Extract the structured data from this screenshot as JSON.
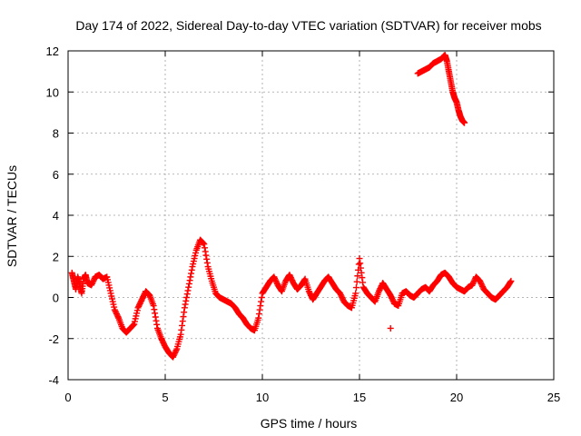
{
  "chart_data": {
    "type": "scatter",
    "title": "Day 174 of 2022, Sidereal Day-to-day VTEC variation (SDTVAR) for receiver mobs",
    "xlabel": "GPS time / hours",
    "ylabel": "SDTVAR / TECUs",
    "xlim": [
      0,
      25
    ],
    "ylim": [
      -4,
      12
    ],
    "xticks": [
      0,
      5,
      10,
      15,
      20,
      25
    ],
    "yticks": [
      -4,
      -2,
      0,
      2,
      4,
      6,
      8,
      10,
      12
    ],
    "xtick_labels": [
      "0",
      "5",
      "10",
      "15",
      "20",
      "25"
    ],
    "ytick_labels": [
      "-4",
      "-2",
      "0",
      "2",
      "4",
      "6",
      "8",
      "10",
      "12"
    ],
    "grid": true,
    "marker": "+",
    "color": "#ff0000",
    "series": [
      {
        "name": "main trace",
        "x": [
          0.2,
          0.3,
          0.4,
          0.5,
          0.6,
          0.7,
          0.8,
          0.9,
          1.0,
          1.2,
          1.4,
          1.6,
          1.8,
          2.0,
          2.2,
          2.4,
          2.6,
          2.8,
          3.0,
          3.2,
          3.4,
          3.6,
          3.8,
          4.0,
          4.2,
          4.4,
          4.6,
          4.8,
          5.0,
          5.2,
          5.4,
          5.6,
          5.8,
          6.0,
          6.2,
          6.4,
          6.6,
          6.8,
          7.0,
          7.2,
          7.4,
          7.6,
          7.8,
          8.0,
          8.2,
          8.4,
          8.6,
          8.8,
          9.0,
          9.2,
          9.4,
          9.6,
          9.8,
          10.0,
          10.2,
          10.4,
          10.6,
          10.8,
          11.0,
          11.2,
          11.4,
          11.6,
          11.8,
          12.0,
          12.2,
          12.4,
          12.6,
          12.8,
          13.0,
          13.2,
          13.4,
          13.6,
          13.8,
          14.0,
          14.2,
          14.4,
          14.6,
          14.8,
          15.0,
          15.2,
          15.4,
          15.6,
          15.8,
          16.0,
          16.2,
          16.4,
          16.6,
          16.8,
          17.0,
          17.2,
          17.4,
          17.6,
          17.8,
          18.0,
          18.2,
          18.4,
          18.6,
          18.8,
          19.0,
          19.2,
          19.4,
          19.6,
          19.8,
          20.0,
          20.2,
          20.4,
          20.6,
          20.8,
          21.0,
          21.2,
          21.4,
          21.6,
          21.8,
          22.0,
          22.2,
          22.4,
          22.6,
          22.8
        ],
        "y": [
          1.2,
          0.8,
          0.4,
          1.0,
          0.6,
          0.2,
          0.9,
          1.1,
          0.7,
          0.6,
          1.0,
          1.1,
          0.9,
          1.0,
          0.2,
          -0.6,
          -1.0,
          -1.5,
          -1.7,
          -1.5,
          -1.3,
          -0.5,
          -0.1,
          0.3,
          0.1,
          -0.4,
          -1.5,
          -2.0,
          -2.4,
          -2.7,
          -2.9,
          -2.5,
          -1.8,
          -0.5,
          0.5,
          1.5,
          2.3,
          2.8,
          2.6,
          1.5,
          0.8,
          0.2,
          0.0,
          -0.1,
          -0.2,
          -0.3,
          -0.5,
          -0.8,
          -1.0,
          -1.3,
          -1.5,
          -1.6,
          -1.0,
          0.2,
          0.5,
          0.8,
          1.0,
          0.6,
          0.3,
          0.8,
          1.1,
          0.7,
          0.4,
          0.6,
          0.9,
          0.3,
          -0.1,
          0.2,
          0.5,
          0.8,
          1.0,
          0.7,
          0.4,
          0.2,
          -0.2,
          -0.4,
          -0.5,
          0.2,
          1.9,
          0.5,
          0.2,
          0.0,
          -0.2,
          0.3,
          0.7,
          0.4,
          0.1,
          -0.3,
          -0.4,
          0.2,
          0.3,
          0.1,
          0.0,
          0.2,
          0.4,
          0.5,
          0.3,
          0.6,
          0.8,
          1.1,
          1.2,
          1.0,
          0.7,
          0.5,
          0.4,
          0.3,
          0.5,
          0.6,
          1.0,
          0.8,
          0.4,
          0.2,
          0.0,
          -0.1,
          0.1,
          0.3,
          0.5,
          0.8
        ]
      },
      {
        "name": "spike near 16.6 h",
        "x": [
          16.6
        ],
        "y": [
          -1.5
        ]
      },
      {
        "name": "upper branch",
        "x": [
          18.0,
          18.2,
          18.4,
          18.6,
          18.8,
          19.0,
          19.2,
          19.4,
          19.5,
          19.6,
          19.7,
          19.8,
          19.9,
          20.0,
          20.1,
          20.2,
          20.3,
          20.4
        ],
        "y": [
          10.9,
          11.0,
          11.1,
          11.2,
          11.4,
          11.5,
          11.6,
          11.8,
          11.5,
          11.0,
          10.5,
          10.0,
          9.7,
          9.5,
          9.1,
          8.8,
          8.6,
          8.5
        ]
      }
    ]
  }
}
